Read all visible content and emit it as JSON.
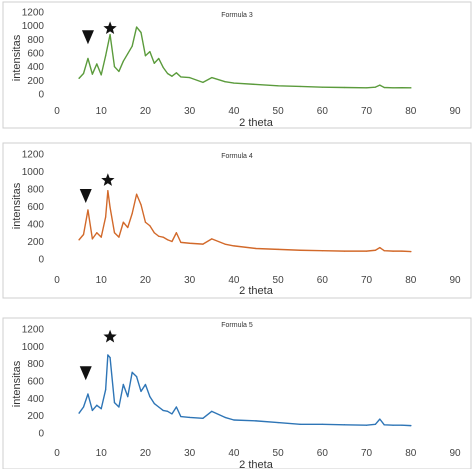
{
  "chart_data": [
    {
      "type": "line",
      "title": "Formula 3",
      "xlabel": "2 theta",
      "ylabel": "intensitas",
      "xlim": [
        0,
        90
      ],
      "ylim": [
        0,
        1200
      ],
      "xticks": [
        "0",
        "10",
        "20",
        "30",
        "40",
        "50",
        "60",
        "70",
        "80",
        "90"
      ],
      "yticks": [
        "0",
        "200",
        "400",
        "600",
        "800",
        "1000",
        "1200"
      ],
      "color": "#5b9b3c",
      "grid": false,
      "markers": [
        {
          "symbol": "triangle-down",
          "x": 7,
          "y": 830
        },
        {
          "symbol": "star",
          "x": 12,
          "y": 960
        }
      ],
      "series": [
        {
          "x": [
            5,
            6,
            7,
            8,
            9,
            10,
            11,
            12,
            13,
            14,
            15,
            16,
            17,
            18,
            19,
            20,
            21,
            22,
            23,
            24,
            25,
            26,
            27,
            28,
            30,
            33,
            35,
            38,
            40,
            45,
            50,
            55,
            60,
            65,
            70,
            72,
            73,
            74,
            76,
            78,
            80
          ],
          "values": [
            230,
            300,
            520,
            290,
            440,
            280,
            560,
            870,
            400,
            330,
            480,
            590,
            700,
            980,
            900,
            560,
            620,
            450,
            520,
            390,
            300,
            260,
            310,
            250,
            240,
            170,
            240,
            180,
            160,
            140,
            120,
            110,
            100,
            95,
            90,
            100,
            130,
            95,
            90,
            92,
            90
          ]
        }
      ]
    },
    {
      "type": "line",
      "title": "Formula 4",
      "xlabel": "2 theta",
      "ylabel": "intensitas",
      "xlim": [
        0,
        90
      ],
      "ylim": [
        0,
        1200
      ],
      "xticks": [
        "0",
        "10",
        "20",
        "30",
        "40",
        "50",
        "60",
        "70",
        "80",
        "90"
      ],
      "yticks": [
        "0",
        "200",
        "400",
        "600",
        "800",
        "1000",
        "1200"
      ],
      "color": "#d2692a",
      "grid": false,
      "markers": [
        {
          "symbol": "triangle-down",
          "x": 6.5,
          "y": 720
        },
        {
          "symbol": "star",
          "x": 11.5,
          "y": 900
        }
      ],
      "series": [
        {
          "x": [
            5,
            6,
            7,
            8,
            9,
            10,
            11,
            11.5,
            12,
            13,
            14,
            15,
            16,
            17,
            18,
            19,
            20,
            21,
            22,
            23,
            24,
            25,
            26,
            27,
            28,
            30,
            33,
            35,
            38,
            40,
            45,
            50,
            55,
            60,
            65,
            70,
            72,
            73,
            74,
            76,
            78,
            80
          ],
          "values": [
            220,
            280,
            560,
            230,
            300,
            250,
            480,
            780,
            590,
            300,
            250,
            420,
            360,
            520,
            740,
            620,
            420,
            380,
            300,
            260,
            250,
            220,
            200,
            300,
            190,
            180,
            170,
            230,
            170,
            150,
            120,
            110,
            100,
            95,
            90,
            90,
            100,
            130,
            95,
            90,
            90,
            85
          ]
        }
      ]
    },
    {
      "type": "line",
      "title": "Formula 5",
      "xlabel": "2 theta",
      "ylabel": "intensitas",
      "xlim": [
        0,
        90
      ],
      "ylim": [
        0,
        1200
      ],
      "xticks": [
        "0",
        "10",
        "20",
        "30",
        "40",
        "50",
        "60",
        "70",
        "80",
        "90"
      ],
      "yticks": [
        "0",
        "200",
        "400",
        "600",
        "800",
        "1000",
        "1200"
      ],
      "color": "#2e75b6",
      "grid": false,
      "markers": [
        {
          "symbol": "triangle-down",
          "x": 6.5,
          "y": 690
        },
        {
          "symbol": "star",
          "x": 12,
          "y": 1110
        }
      ],
      "series": [
        {
          "x": [
            5,
            6,
            7,
            8,
            9,
            10,
            11,
            11.5,
            12,
            13,
            14,
            15,
            16,
            17,
            18,
            19,
            20,
            21,
            22,
            23,
            24,
            25,
            26,
            27,
            28,
            30,
            33,
            35,
            38,
            40,
            45,
            50,
            55,
            60,
            65,
            70,
            72,
            73,
            74,
            76,
            78,
            80
          ],
          "values": [
            230,
            300,
            450,
            260,
            320,
            280,
            500,
            900,
            870,
            350,
            300,
            560,
            420,
            700,
            650,
            480,
            560,
            420,
            340,
            300,
            260,
            250,
            220,
            300,
            190,
            180,
            170,
            250,
            180,
            150,
            140,
            120,
            100,
            100,
            95,
            90,
            100,
            160,
            95,
            90,
            90,
            85
          ]
        }
      ]
    }
  ]
}
